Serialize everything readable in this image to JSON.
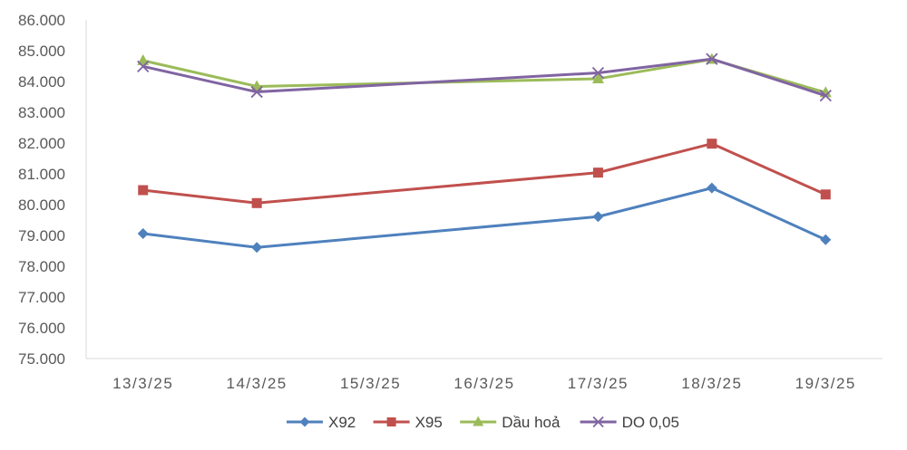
{
  "chart_data": {
    "type": "line",
    "title": "",
    "xlabel": "",
    "ylabel": "",
    "categories": [
      "13/3/25",
      "14/3/25",
      "15/3/25",
      "16/3/25",
      "17/3/25",
      "18/3/25",
      "19/3/25"
    ],
    "ylim": [
      75000,
      86000
    ],
    "y_ticks": [
      75000,
      76000,
      77000,
      78000,
      79000,
      80000,
      81000,
      82000,
      83000,
      84000,
      85000,
      86000
    ],
    "y_tick_labels": [
      "75.000",
      "76.000",
      "77.000",
      "78.000",
      "79.000",
      "80.000",
      "81.000",
      "82.000",
      "83.000",
      "84.000",
      "85.000",
      "86.000"
    ],
    "grid": false,
    "legend_position": "bottom",
    "series": [
      {
        "name": "X92",
        "color": "#4F81BD",
        "marker": "diamond",
        "points": [
          {
            "category": "13/3/25",
            "value": 79060
          },
          {
            "category": "14/3/25",
            "value": 78610
          },
          {
            "category": "17/3/25",
            "value": 79610
          },
          {
            "category": "18/3/25",
            "value": 80540
          },
          {
            "category": "19/3/25",
            "value": 78860
          }
        ]
      },
      {
        "name": "X95",
        "color": "#C0504D",
        "marker": "square",
        "points": [
          {
            "category": "13/3/25",
            "value": 80470
          },
          {
            "category": "14/3/25",
            "value": 80050
          },
          {
            "category": "17/3/25",
            "value": 81040
          },
          {
            "category": "18/3/25",
            "value": 81980
          },
          {
            "category": "19/3/25",
            "value": 80330
          }
        ]
      },
      {
        "name": "Dầu hoả",
        "color": "#9BBB59",
        "marker": "triangle",
        "points": [
          {
            "category": "13/3/25",
            "value": 84680
          },
          {
            "category": "14/3/25",
            "value": 83840
          },
          {
            "category": "17/3/25",
            "value": 84090
          },
          {
            "category": "18/3/25",
            "value": 84720
          },
          {
            "category": "19/3/25",
            "value": 83640
          }
        ]
      },
      {
        "name": "DO 0,05",
        "color": "#8064A2",
        "marker": "x",
        "points": [
          {
            "category": "13/3/25",
            "value": 84490
          },
          {
            "category": "14/3/25",
            "value": 83660
          },
          {
            "category": "17/3/25",
            "value": 84280
          },
          {
            "category": "18/3/25",
            "value": 84730
          },
          {
            "category": "19/3/25",
            "value": 83540
          }
        ]
      }
    ]
  }
}
